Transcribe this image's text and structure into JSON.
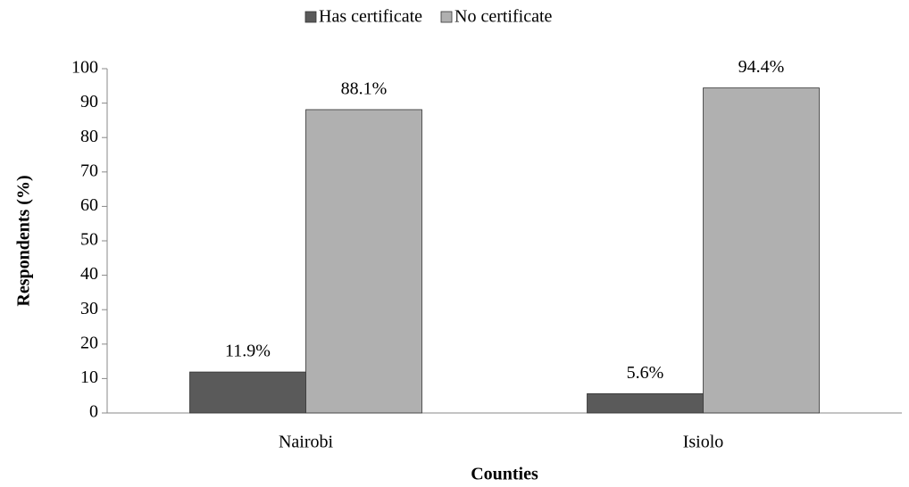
{
  "chart_data": {
    "type": "bar",
    "y_label": "Respondents (%)",
    "x_label": "Counties",
    "categories": [
      "Nairobi",
      "Isiolo"
    ],
    "series": [
      {
        "name": "Has certificate",
        "color": "#5a5a5a",
        "values": [
          11.9,
          5.6
        ],
        "value_labels": [
          "11.9%",
          "5.6%"
        ]
      },
      {
        "name": "No certificate",
        "color": "#b0b0b0",
        "values": [
          88.1,
          94.4
        ],
        "value_labels": [
          "88.1%",
          "94.4%"
        ]
      }
    ],
    "ylim": [
      0,
      100
    ],
    "yticks": [
      0,
      10,
      20,
      30,
      40,
      50,
      60,
      70,
      80,
      90,
      100
    ],
    "legend": "top",
    "grid": false
  }
}
